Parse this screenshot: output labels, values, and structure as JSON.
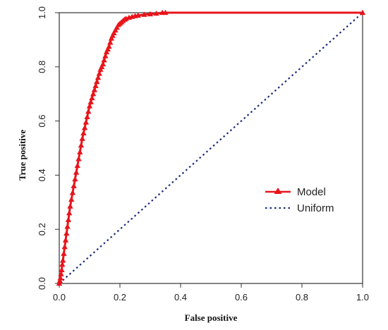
{
  "chart_data": {
    "type": "line",
    "title": "",
    "xlabel": "False positive",
    "ylabel": "True positive",
    "xlim": [
      0,
      1
    ],
    "ylim": [
      0,
      1
    ],
    "xticks": [
      "0.0",
      "0.2",
      "0.4",
      "0.6",
      "0.8",
      "1.0"
    ],
    "yticks": [
      "0.0",
      "0.2",
      "0.4",
      "0.6",
      "0.8",
      "1.0"
    ],
    "grid": false,
    "legend": "center-right",
    "series": [
      {
        "name": "Model",
        "color": "#e8141b",
        "style": "solid-triangle-markers",
        "x": [
          0.0,
          0.002,
          0.004,
          0.006,
          0.008,
          0.01,
          0.012,
          0.015,
          0.018,
          0.021,
          0.024,
          0.027,
          0.03,
          0.033,
          0.036,
          0.04,
          0.044,
          0.048,
          0.052,
          0.056,
          0.06,
          0.064,
          0.068,
          0.072,
          0.076,
          0.08,
          0.084,
          0.088,
          0.092,
          0.096,
          0.1,
          0.104,
          0.108,
          0.112,
          0.116,
          0.12,
          0.124,
          0.128,
          0.132,
          0.136,
          0.14,
          0.144,
          0.148,
          0.152,
          0.156,
          0.16,
          0.164,
          0.168,
          0.172,
          0.176,
          0.18,
          0.185,
          0.19,
          0.195,
          0.2,
          0.205,
          0.21,
          0.215,
          0.22,
          0.23,
          0.24,
          0.25,
          0.26,
          0.28,
          0.3,
          0.32,
          0.34,
          0.35,
          1.0
        ],
        "y": [
          0.0,
          0.01,
          0.02,
          0.035,
          0.05,
          0.07,
          0.085,
          0.11,
          0.135,
          0.16,
          0.185,
          0.21,
          0.235,
          0.26,
          0.285,
          0.31,
          0.335,
          0.36,
          0.385,
          0.41,
          0.435,
          0.46,
          0.485,
          0.51,
          0.535,
          0.555,
          0.575,
          0.595,
          0.615,
          0.635,
          0.655,
          0.67,
          0.685,
          0.7,
          0.715,
          0.73,
          0.745,
          0.76,
          0.775,
          0.79,
          0.8,
          0.81,
          0.825,
          0.84,
          0.855,
          0.865,
          0.875,
          0.89,
          0.905,
          0.915,
          0.925,
          0.935,
          0.945,
          0.955,
          0.96,
          0.965,
          0.97,
          0.975,
          0.978,
          0.982,
          0.985,
          0.988,
          0.99,
          0.993,
          0.995,
          0.997,
          1.0,
          1.0,
          1.0
        ]
      },
      {
        "name": "Uniform",
        "color": "#1a2a7a",
        "style": "dotted",
        "x": [
          0,
          1
        ],
        "y": [
          0,
          1
        ]
      }
    ]
  }
}
